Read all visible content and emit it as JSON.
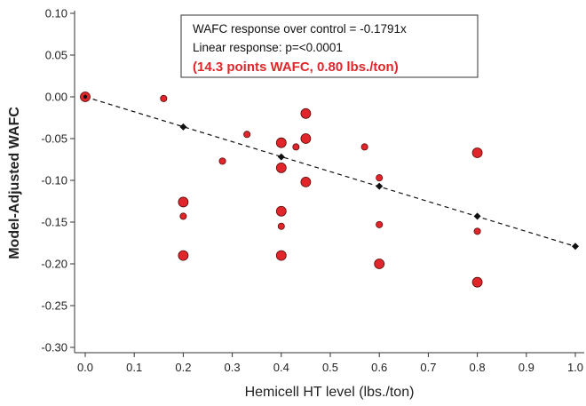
{
  "chart_data": {
    "type": "scatter",
    "xlabel": "Hemicell HT level (lbs./ton)",
    "ylabel": "Model-Adjusted WAFC",
    "xlim": [
      -0.02,
      1.02
    ],
    "ylim": [
      -0.31,
      0.105
    ],
    "xticks": [
      "0.0",
      "0.1",
      "0.2",
      "0.3",
      "0.4",
      "0.5",
      "0.6",
      "0.7",
      "0.8",
      "0.9",
      "1.0"
    ],
    "yticks": [
      "0.10",
      "0.05",
      "0.00",
      "-0.05",
      "-0.10",
      "-0.15",
      "-0.20",
      "-0.25",
      "-0.30"
    ],
    "grid": false,
    "annotation": {
      "line1": "WAFC response over control = -0.1791x",
      "line2": "Linear response: p=<0.0001",
      "line3": "(14.3 points WAFC, 0.80 lbs./ton)",
      "highlight_color": "#e0262b"
    },
    "points_large": [
      {
        "x": 0.0,
        "y": 0.0
      },
      {
        "x": 0.2,
        "y": -0.126
      },
      {
        "x": 0.2,
        "y": -0.19
      },
      {
        "x": 0.4,
        "y": -0.055
      },
      {
        "x": 0.4,
        "y": -0.085
      },
      {
        "x": 0.4,
        "y": -0.137
      },
      {
        "x": 0.4,
        "y": -0.19
      },
      {
        "x": 0.45,
        "y": -0.02
      },
      {
        "x": 0.45,
        "y": -0.05
      },
      {
        "x": 0.45,
        "y": -0.102
      },
      {
        "x": 0.6,
        "y": -0.2
      },
      {
        "x": 0.8,
        "y": -0.067
      },
      {
        "x": 0.8,
        "y": -0.222
      }
    ],
    "points_small": [
      {
        "x": 0.16,
        "y": -0.002
      },
      {
        "x": 0.2,
        "y": -0.143
      },
      {
        "x": 0.28,
        "y": -0.077
      },
      {
        "x": 0.33,
        "y": -0.045
      },
      {
        "x": 0.4,
        "y": -0.155
      },
      {
        "x": 0.43,
        "y": -0.06
      },
      {
        "x": 0.57,
        "y": -0.06
      },
      {
        "x": 0.6,
        "y": -0.097
      },
      {
        "x": 0.6,
        "y": -0.153
      },
      {
        "x": 0.8,
        "y": -0.161
      }
    ],
    "fitted_points": [
      {
        "x": 0.2,
        "y": -0.036
      },
      {
        "x": 0.4,
        "y": -0.072
      },
      {
        "x": 0.6,
        "y": -0.107
      },
      {
        "x": 0.8,
        "y": -0.143
      },
      {
        "x": 1.0,
        "y": -0.179
      }
    ],
    "trend_line": {
      "x0": 0.0,
      "y0": 0.0,
      "x1": 1.0,
      "y1": -0.1791
    },
    "colors": {
      "point_fill": "#e0262b",
      "point_edge": "#5a0a0a",
      "fit_marker": "#111111",
      "axis": "#333333"
    }
  }
}
